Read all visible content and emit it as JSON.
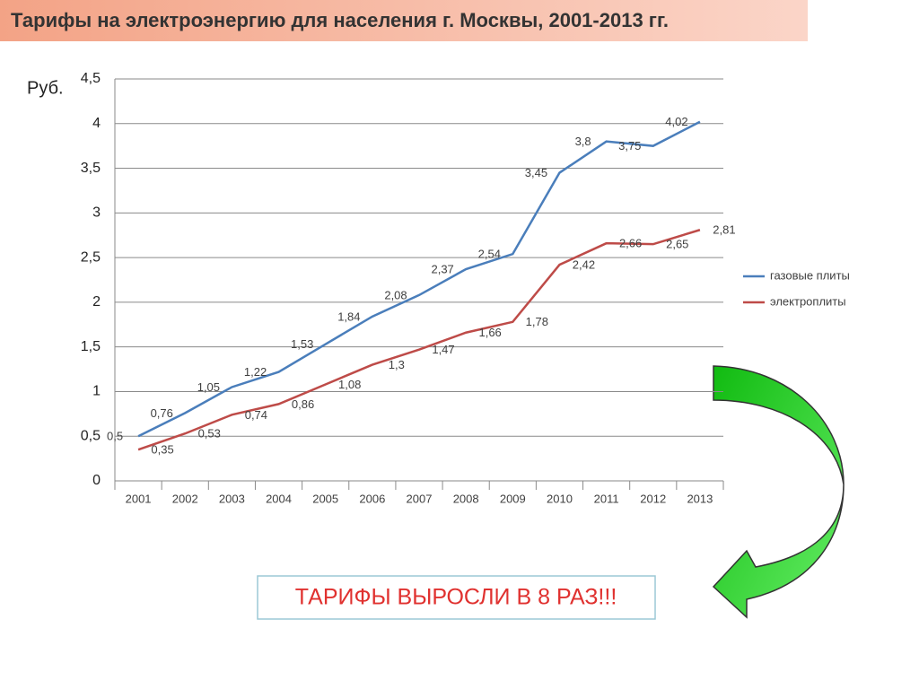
{
  "chart_data": {
    "type": "line",
    "title": "Тарифы на электроэнергию для населения г. Москвы, 2001-2013 гг.",
    "ylabel": "Руб.",
    "annotation": "ТАРИФЫ ВЫРОСЛИ В 8 РАЗ!!!",
    "categories": [
      "2001",
      "2002",
      "2003",
      "2004",
      "2005",
      "2006",
      "2007",
      "2008",
      "2009",
      "2010",
      "2011",
      "2012",
      "2013"
    ],
    "series": [
      {
        "name": "газовые плиты",
        "color": "#4a7ebb",
        "values": [
          0.5,
          0.76,
          1.05,
          1.22,
          1.53,
          1.84,
          2.08,
          2.37,
          2.54,
          3.45,
          3.8,
          3.75,
          4.02
        ],
        "value_labels": [
          "0,5",
          "0,76",
          "1,05",
          "1,22",
          "1,53",
          "1,84",
          "2,08",
          "2,37",
          "2,54",
          "3,45",
          "3,8",
          "3,75",
          "4,02"
        ]
      },
      {
        "name": "электроплиты",
        "color": "#be4b48",
        "values": [
          0.35,
          0.53,
          0.74,
          0.86,
          1.08,
          1.3,
          1.47,
          1.66,
          1.78,
          2.42,
          2.66,
          2.65,
          2.81
        ],
        "value_labels": [
          "0,35",
          "0,53",
          "0,74",
          "0,86",
          "1,08",
          "1,3",
          "1,47",
          "1,66",
          "1,78",
          "2,42",
          "2,66",
          "2,65",
          "2,81"
        ]
      }
    ],
    "ylim": [
      0,
      4.5
    ],
    "yticks": [
      0,
      {
        "value": 0.5,
        "label": "0,5"
      },
      1,
      {
        "value": 1.5,
        "label": "1,5"
      },
      2,
      {
        "value": 2.5,
        "label": "2,5"
      },
      3,
      {
        "value": 3.5,
        "label": "3,5"
      },
      4,
      {
        "value": 4.5,
        "label": "4,5"
      }
    ],
    "grid": true,
    "legend": "right"
  }
}
